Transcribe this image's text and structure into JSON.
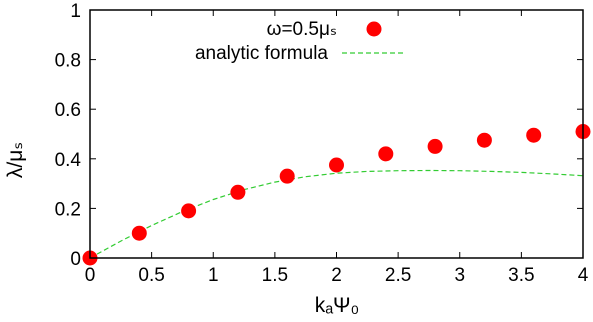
{
  "chart_data": {
    "type": "scatter",
    "xlabel": "kₐΨ₀",
    "ylabel": "λ/μₛ",
    "xlim": [
      0,
      4
    ],
    "ylim": [
      0,
      1
    ],
    "x_ticks": [
      "0",
      "0.5",
      "1",
      "1.5",
      "2",
      "2.5",
      "3",
      "3.5",
      "4"
    ],
    "y_ticks": [
      "0",
      "0.2",
      "0.4",
      "0.6",
      "0.8",
      "1"
    ],
    "grid": false,
    "legend_position": "top-right",
    "series": [
      {
        "name": "ω=0.5μₛ",
        "kind": "points",
        "color": "#ff0000",
        "x": [
          0,
          0.4,
          0.8,
          1.2,
          1.6,
          2.0,
          2.4,
          2.8,
          3.2,
          3.6,
          4.0
        ],
        "y": [
          0.0,
          0.1,
          0.19,
          0.265,
          0.33,
          0.375,
          0.42,
          0.45,
          0.475,
          0.495,
          0.51
        ]
      },
      {
        "name": "analytic formula",
        "kind": "line",
        "style": "dashed",
        "color": "#33cc33",
        "x": [
          0,
          0.25,
          0.5,
          0.75,
          1.0,
          1.25,
          1.5,
          1.75,
          2.0,
          2.25,
          2.5,
          2.75,
          3.0,
          3.25,
          3.5,
          3.75,
          4.0
        ],
        "y": [
          0.0,
          0.068,
          0.131,
          0.187,
          0.236,
          0.276,
          0.306,
          0.328,
          0.342,
          0.349,
          0.352,
          0.353,
          0.352,
          0.349,
          0.345,
          0.339,
          0.332
        ]
      }
    ]
  }
}
